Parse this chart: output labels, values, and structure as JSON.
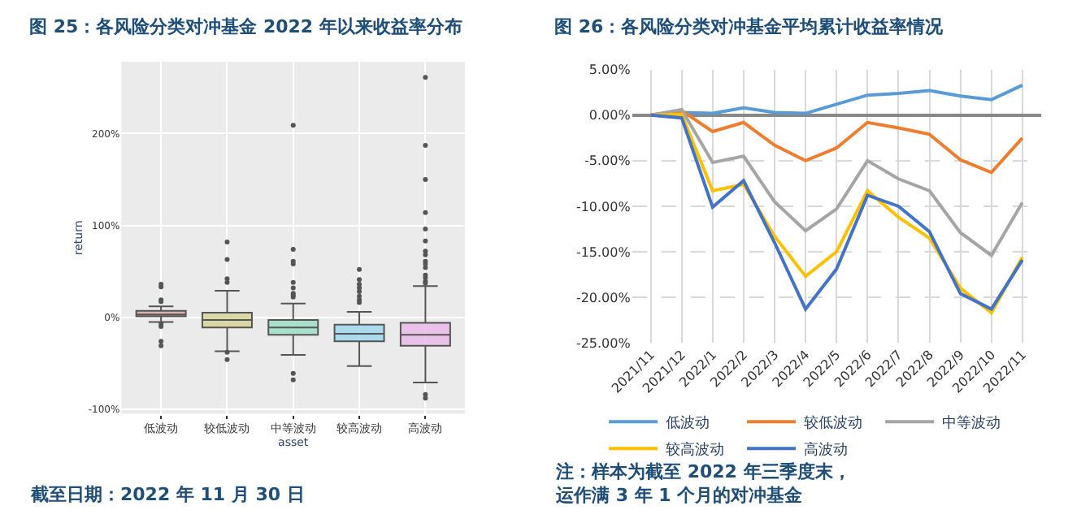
{
  "chart_data": [
    {
      "type": "box",
      "title": "图 25：各风险分类对冲基金 2022 年以来收益率分布",
      "xlabel": "asset",
      "ylabel": "return",
      "categories": [
        "低波动",
        "较低波动",
        "中等波动",
        "较高波动",
        "高波动"
      ],
      "colors": [
        "#d9a8a5",
        "#d6d497",
        "#9fddc7",
        "#9fd7ef",
        "#eabbe9"
      ],
      "boxes": [
        {
          "low": -5,
          "q1": 1,
          "median": 3,
          "q3": 7,
          "high": 12,
          "outliers": [
            36,
            33,
            19,
            17,
            -7,
            -10,
            -26,
            -31
          ]
        },
        {
          "low": -37,
          "q1": -11,
          "median": -3,
          "q3": 5,
          "high": 29,
          "outliers": [
            82,
            63,
            42,
            38,
            -38,
            -46
          ]
        },
        {
          "low": -41,
          "q1": -19,
          "median": -11,
          "q3": -3,
          "high": 15,
          "outliers": [
            209,
            74,
            61,
            58,
            38,
            32,
            26,
            24,
            22,
            -61,
            -68
          ]
        },
        {
          "low": -53,
          "q1": -26,
          "median": -18,
          "q3": -8,
          "high": 6,
          "outliers": [
            52,
            41,
            36,
            32,
            28,
            23,
            19,
            16
          ]
        },
        {
          "low": -71,
          "q1": -31,
          "median": -19,
          "q3": -6,
          "high": 34,
          "outliers": [
            261,
            187,
            150,
            114,
            96,
            83,
            72,
            68,
            61,
            58,
            54,
            46,
            43,
            39,
            37,
            -84,
            -88
          ]
        }
      ],
      "ylim": [
        -105,
        278
      ],
      "yticks": [
        {
          "value": -100,
          "label": "-100%"
        },
        {
          "value": 0,
          "label": "0%"
        },
        {
          "value": 100,
          "label": "100%"
        },
        {
          "value": 200,
          "label": "200%"
        }
      ],
      "grid": true,
      "legend": false,
      "annotations": [
        "截至日期：2022 年 11 月 30 日"
      ]
    },
    {
      "type": "line",
      "title": "图 26：各风险分类对冲基金平均累计收益率情况",
      "categories": [
        "2021/11",
        "2021/12",
        "2022/1",
        "2022/2",
        "2022/3",
        "2022/4",
        "2022/5",
        "2022/6",
        "2022/7",
        "2022/8",
        "2022/9",
        "2022/10",
        "2022/11"
      ],
      "series": [
        {
          "name": "低波动",
          "color": "#5b9bd5",
          "values": [
            0,
            0.3,
            0.2,
            0.8,
            0.3,
            0.2,
            1.2,
            2.2,
            2.4,
            2.7,
            2.1,
            1.7,
            3.3
          ]
        },
        {
          "name": "较低波动",
          "color": "#ed7d31",
          "values": [
            0,
            0.5,
            -1.8,
            -0.8,
            -3.3,
            -5.0,
            -3.6,
            -0.8,
            -1.4,
            -2.1,
            -4.9,
            -6.3,
            -2.5
          ]
        },
        {
          "name": "中等波动",
          "color": "#a5a5a5",
          "values": [
            0,
            0.6,
            -5.2,
            -4.5,
            -9.5,
            -12.7,
            -10.3,
            -5.0,
            -7.0,
            -8.3,
            -12.9,
            -15.4,
            -9.6
          ]
        },
        {
          "name": "较高波动",
          "color": "#ffc000",
          "values": [
            0,
            0.1,
            -8.3,
            -7.6,
            -13.3,
            -17.7,
            -15.0,
            -8.3,
            -11.2,
            -13.5,
            -19.0,
            -21.7,
            -15.6
          ]
        },
        {
          "name": "高波动",
          "color": "#4472c4",
          "values": [
            0,
            -0.3,
            -10.1,
            -7.2,
            -14.0,
            -21.3,
            -16.9,
            -8.8,
            -10.0,
            -12.8,
            -19.6,
            -21.3,
            -15.9
          ]
        }
      ],
      "ylim": [
        -25,
        5
      ],
      "yticks": [
        {
          "value": 5,
          "label": "5.00%"
        },
        {
          "value": 0,
          "label": "0.00%"
        },
        {
          "value": -5,
          "label": "-5.00%"
        },
        {
          "value": -10,
          "label": "-10.00%"
        },
        {
          "value": -15,
          "label": "-15.00%"
        },
        {
          "value": -20,
          "label": "-20.00%"
        },
        {
          "value": -25,
          "label": "-25.00%"
        }
      ],
      "grid": true,
      "legend": "bottom",
      "marker": "none",
      "line_style": "solid",
      "annotations": [
        "注：样本为截至 2022 年三季度末，运作满 3 年 1 个月的对冲基金"
      ]
    }
  ]
}
